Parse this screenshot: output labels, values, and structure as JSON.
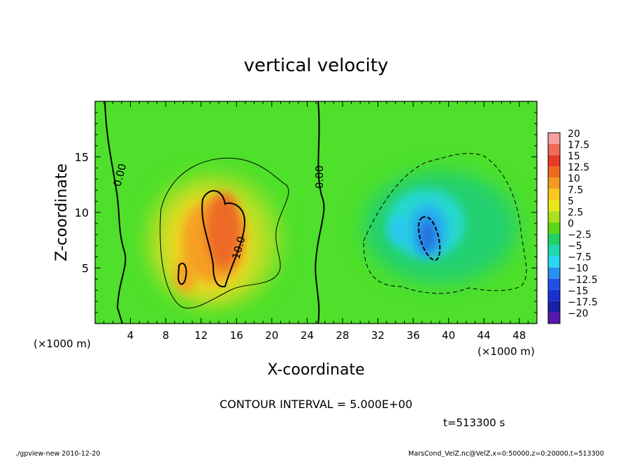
{
  "chart_data": {
    "type": "heatmap",
    "title": "vertical velocity",
    "xlabel": "X-coordinate",
    "ylabel": "Z-coordinate",
    "x_units": "(×1000 m)",
    "y_units": "(×1000 m)",
    "xlim": [
      0,
      50
    ],
    "ylim": [
      0,
      20
    ],
    "x_ticks": [
      4,
      8,
      12,
      16,
      20,
      24,
      28,
      32,
      36,
      40,
      44,
      48
    ],
    "y_ticks": [
      5,
      10,
      15
    ],
    "colorbar": {
      "levels": [
        "20",
        "17.5",
        "15",
        "12.5",
        "10",
        "7.5",
        "5",
        "2.5",
        "0",
        "−2.5",
        "−5",
        "−7.5",
        "−10",
        "−12.5",
        "−15",
        "−17.5",
        "−20"
      ],
      "colors": [
        "#f5a0a0",
        "#f06a5a",
        "#e83a28",
        "#ef6a1e",
        "#f59a20",
        "#f8c820",
        "#e8e818",
        "#a8e020",
        "#5ad818",
        "#20d060",
        "#20d8b0",
        "#28d8f0",
        "#2890f0",
        "#2050e8",
        "#1830d0",
        "#1820a8",
        "#5818b0"
      ]
    },
    "contour_labels": [
      "0.00",
      "0.00",
      "10.0"
    ],
    "grid": false
  },
  "footer": {
    "contour_interval": "CONTOUR INTERVAL = 5.000E+00",
    "time": "t=513300 s",
    "program": "./gpview-new   2010-12-20",
    "source": "MarsCond_VelZ.nc@VelZ,x=0:50000,z=0:20000,t=513300"
  }
}
